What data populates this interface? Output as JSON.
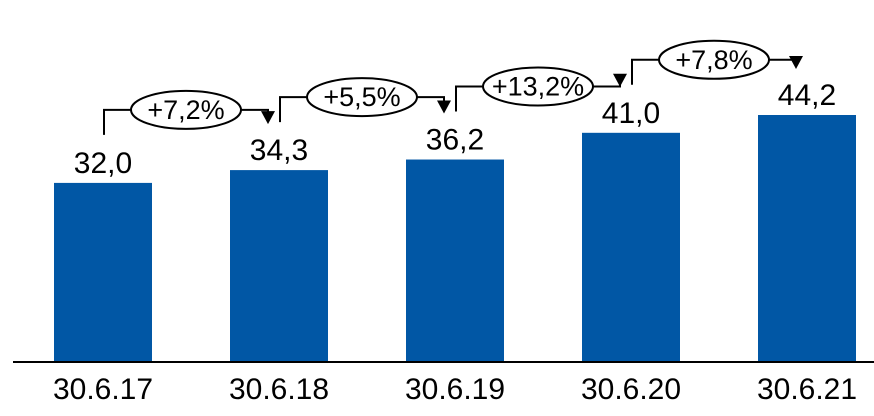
{
  "chart_data": {
    "type": "bar",
    "categories": [
      "30.6.17",
      "30.6.18",
      "30.6.19",
      "30.6.20",
      "30.6.21"
    ],
    "values": [
      32.0,
      34.3,
      36.2,
      41.0,
      44.2
    ],
    "value_labels": [
      "32,0",
      "34,3",
      "36,2",
      "41,0",
      "44,2"
    ],
    "growth_labels": [
      "+7,2%",
      "+5,5%",
      "+13,2%",
      "+7,8%"
    ],
    "bar_color": "#0157A5",
    "title": "",
    "xlabel": "",
    "ylabel": "",
    "grid": false,
    "legend": "none"
  }
}
